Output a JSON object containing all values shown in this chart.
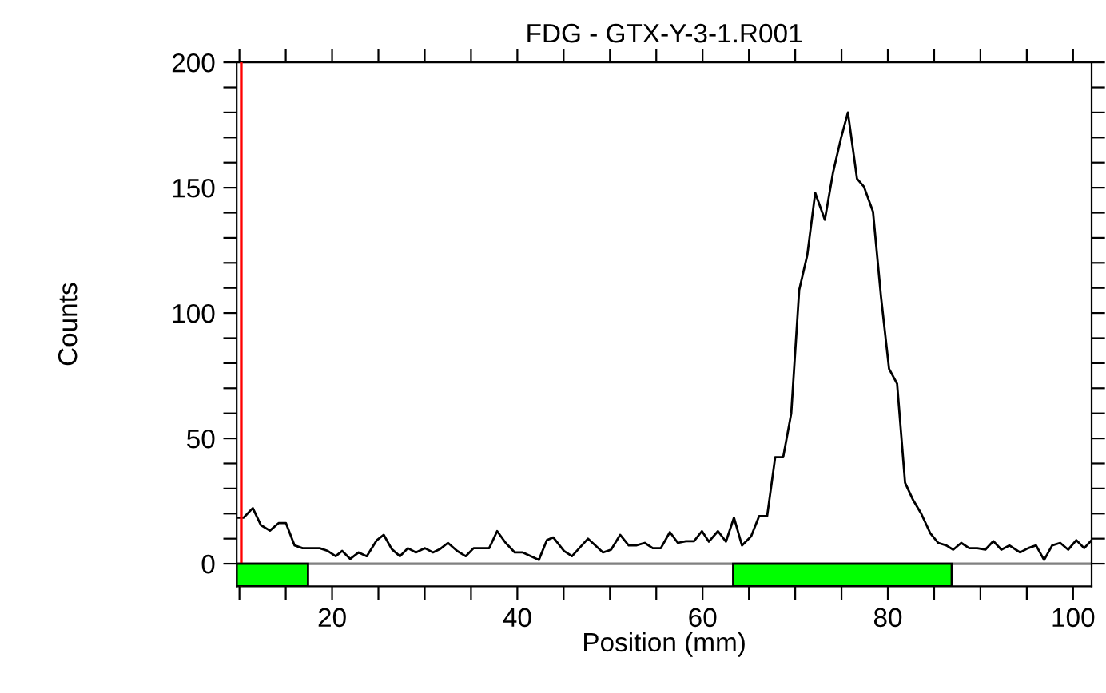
{
  "chart_data": {
    "type": "line",
    "title": "FDG - GTX-Y-3-1.R001",
    "xlabel": "Position (mm)",
    "ylabel": "Counts",
    "series": [
      {
        "color": "#000000",
        "x": [
          9.71,
          10.46,
          11.44,
          12.31,
          13.29,
          14.22,
          15.02,
          15.95,
          16.81,
          18.66,
          19.53,
          20.39,
          21.08,
          21.95,
          22.87,
          23.74,
          24.83,
          25.58,
          26.45,
          27.32,
          28.18,
          29.05,
          30.03,
          30.89,
          31.64,
          32.51,
          33.49,
          34.42,
          35.28,
          36.96,
          37.82,
          38.74,
          39.72,
          40.59,
          42.32,
          43.19,
          43.88,
          45.04,
          45.9,
          47.63,
          49.25,
          50.12,
          51.1,
          52.02,
          52.83,
          53.76,
          54.62,
          55.49,
          56.47,
          57.33,
          58.2,
          59.07,
          59.93,
          60.68,
          61.66,
          62.52,
          63.39,
          64.25,
          65.24,
          66.1,
          66.97,
          67.84,
          68.7,
          69.57,
          70.43,
          71.3,
          72.16,
          73.2,
          74.07,
          74.94,
          75.69,
          76.67,
          77.42,
          78.4,
          79.26,
          80.13,
          81.0,
          81.86,
          82.73,
          83.59,
          84.58,
          85.45,
          86.31,
          87.06,
          87.92,
          88.79,
          89.66,
          90.52,
          91.39,
          92.25,
          93.12,
          94.27,
          95.14,
          96.0,
          96.87,
          97.74,
          98.61,
          99.47,
          100.34,
          101.2,
          102.0
        ],
        "values": [
          18.4,
          18.4,
          22.2,
          15.4,
          13.2,
          16.2,
          16.2,
          7.3,
          6.2,
          6.2,
          5.1,
          3.0,
          5.1,
          1.9,
          4.5,
          3.0,
          9.4,
          11.5,
          5.8,
          3.0,
          6.2,
          4.5,
          6.2,
          4.5,
          5.8,
          8.3,
          5.1,
          3.0,
          6.2,
          6.2,
          13.0,
          8.3,
          4.5,
          4.5,
          1.5,
          9.4,
          10.5,
          5.1,
          3.0,
          10.0,
          4.5,
          5.6,
          11.5,
          7.3,
          7.3,
          8.3,
          6.2,
          6.2,
          12.6,
          8.3,
          9.0,
          9.0,
          13.0,
          8.8,
          13.0,
          8.8,
          18.4,
          7.3,
          10.9,
          19.0,
          19.0,
          42.5,
          42.5,
          60.0,
          109.2,
          123.1,
          147.9,
          137.2,
          155.8,
          169.7,
          180,
          153.6,
          150.4,
          140.4,
          106.6,
          77.8,
          71.8,
          32.3,
          25.4,
          20.1,
          12.2,
          8.3,
          7.3,
          5.6,
          8.3,
          6.2,
          6.2,
          5.6,
          9.0,
          5.6,
          7.3,
          4.5,
          6.2,
          7.3,
          1.5,
          7.3,
          8.3,
          5.6,
          9.4,
          6.2,
          9.4
        ]
      }
    ],
    "xlim": [
      9.7,
      102
    ],
    "ylim": [
      -9,
      200
    ],
    "xticks": [
      {
        "value": 10,
        "label": null
      },
      {
        "value": 15,
        "label": null
      },
      20,
      {
        "value": 25,
        "label": null
      },
      {
        "value": 30,
        "label": null
      },
      {
        "value": 35,
        "label": null
      },
      40,
      {
        "value": 45,
        "label": null
      },
      {
        "value": 50,
        "label": null
      },
      {
        "value": 55,
        "label": null
      },
      60,
      {
        "value": 65,
        "label": null
      },
      {
        "value": 70,
        "label": null
      },
      {
        "value": 75,
        "label": null
      },
      80,
      {
        "value": 85,
        "label": null
      },
      {
        "value": 90,
        "label": null
      },
      {
        "value": 95,
        "label": null
      },
      100
    ],
    "yticks": [
      0,
      {
        "value": 10,
        "label": null
      },
      {
        "value": 20,
        "label": null
      },
      {
        "value": 30,
        "label": null
      },
      {
        "value": 40,
        "label": null
      },
      50,
      {
        "value": 60,
        "label": null
      },
      {
        "value": 70,
        "label": null
      },
      {
        "value": 80,
        "label": null
      },
      {
        "value": 90,
        "label": null
      },
      100,
      {
        "value": 110,
        "label": null
      },
      {
        "value": 120,
        "label": null
      },
      {
        "value": 130,
        "label": null
      },
      {
        "value": 140,
        "label": null
      },
      150,
      {
        "value": 160,
        "label": null
      },
      {
        "value": 170,
        "label": null
      },
      {
        "value": 180,
        "label": null
      },
      {
        "value": 190,
        "label": null
      },
      200
    ],
    "ref_lines": [
      {
        "axis": "x",
        "value": 10.2,
        "color": "#ff0000"
      }
    ],
    "bands": [
      {
        "axis": "x",
        "from": 9.7,
        "to": 17.4,
        "color": "#00ff00"
      },
      {
        "axis": "x",
        "from": 63.3,
        "to": 86.9,
        "color": "#00ff00"
      }
    ],
    "grid": false,
    "legend": false,
    "marker": "none",
    "line_style": "solid"
  }
}
